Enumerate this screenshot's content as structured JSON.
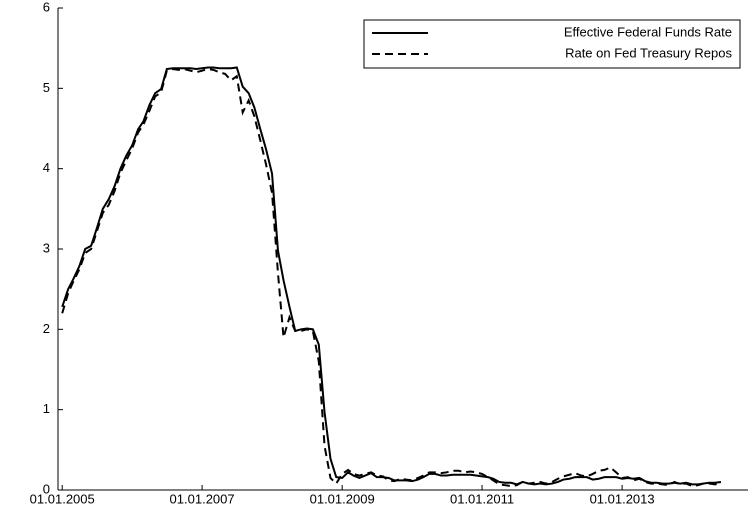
{
  "chart_data": {
    "type": "line",
    "x": [
      "2005-01-01",
      "2005-02-01",
      "2005-03-01",
      "2005-04-01",
      "2005-05-01",
      "2005-06-01",
      "2005-07-01",
      "2005-08-01",
      "2005-09-01",
      "2005-10-01",
      "2005-11-01",
      "2005-12-01",
      "2006-01-01",
      "2006-02-01",
      "2006-03-01",
      "2006-04-01",
      "2006-05-01",
      "2006-06-01",
      "2006-07-01",
      "2006-08-01",
      "2006-09-01",
      "2006-10-01",
      "2006-11-01",
      "2006-12-01",
      "2007-01-01",
      "2007-02-01",
      "2007-03-01",
      "2007-04-01",
      "2007-05-01",
      "2007-06-01",
      "2007-07-01",
      "2007-08-01",
      "2007-09-01",
      "2007-10-01",
      "2007-11-01",
      "2007-12-01",
      "2008-01-01",
      "2008-02-01",
      "2008-03-01",
      "2008-04-01",
      "2008-05-01",
      "2008-06-01",
      "2008-07-01",
      "2008-08-01",
      "2008-09-01",
      "2008-10-01",
      "2008-11-01",
      "2008-12-01",
      "2009-01-01",
      "2009-02-01",
      "2009-03-01",
      "2009-04-01",
      "2009-05-01",
      "2009-06-01",
      "2009-07-01",
      "2009-08-01",
      "2009-09-01",
      "2009-10-01",
      "2009-11-01",
      "2009-12-01",
      "2010-01-01",
      "2010-02-01",
      "2010-03-01",
      "2010-04-01",
      "2010-05-01",
      "2010-06-01",
      "2010-07-01",
      "2010-08-01",
      "2010-09-01",
      "2010-10-01",
      "2010-11-01",
      "2010-12-01",
      "2011-01-01",
      "2011-02-01",
      "2011-03-01",
      "2011-04-01",
      "2011-05-01",
      "2011-06-01",
      "2011-07-01",
      "2011-08-01",
      "2011-09-01",
      "2011-10-01",
      "2011-11-01",
      "2011-12-01",
      "2012-01-01",
      "2012-02-01",
      "2012-03-01",
      "2012-04-01",
      "2012-05-01",
      "2012-06-01",
      "2012-07-01",
      "2012-08-01",
      "2012-09-01",
      "2012-10-01",
      "2012-11-01",
      "2012-12-01",
      "2013-01-01",
      "2013-02-01",
      "2013-03-01",
      "2013-04-01",
      "2013-05-01",
      "2013-06-01",
      "2013-07-01",
      "2013-08-01",
      "2013-09-01",
      "2013-10-01",
      "2013-11-01",
      "2013-12-01",
      "2014-01-01",
      "2014-02-01",
      "2014-03-01",
      "2014-04-01",
      "2014-05-01",
      "2014-06-01"
    ],
    "series": [
      {
        "name": "Effective Federal Funds Rate",
        "color": "#000000",
        "dash": "solid",
        "values": [
          2.28,
          2.5,
          2.63,
          2.79,
          3.0,
          3.04,
          3.26,
          3.5,
          3.62,
          3.78,
          4.0,
          4.16,
          4.29,
          4.49,
          4.59,
          4.79,
          4.94,
          4.99,
          5.24,
          5.25,
          5.25,
          5.25,
          5.25,
          5.24,
          5.25,
          5.26,
          5.26,
          5.25,
          5.25,
          5.25,
          5.26,
          5.02,
          4.94,
          4.76,
          4.49,
          4.24,
          3.94,
          2.98,
          2.61,
          2.28,
          1.98,
          2.0,
          2.01,
          2.0,
          1.81,
          0.97,
          0.39,
          0.16,
          0.15,
          0.22,
          0.18,
          0.15,
          0.18,
          0.21,
          0.16,
          0.16,
          0.15,
          0.12,
          0.12,
          0.12,
          0.11,
          0.13,
          0.16,
          0.2,
          0.2,
          0.18,
          0.18,
          0.19,
          0.19,
          0.19,
          0.19,
          0.18,
          0.17,
          0.16,
          0.14,
          0.1,
          0.09,
          0.09,
          0.07,
          0.1,
          0.08,
          0.07,
          0.08,
          0.07,
          0.08,
          0.1,
          0.13,
          0.14,
          0.16,
          0.16,
          0.16,
          0.13,
          0.14,
          0.16,
          0.16,
          0.16,
          0.14,
          0.15,
          0.14,
          0.15,
          0.11,
          0.09,
          0.09,
          0.08,
          0.08,
          0.09,
          0.08,
          0.09,
          0.07,
          0.07,
          0.08,
          0.09,
          0.09,
          0.1
        ]
      },
      {
        "name": "Rate on Fed Treasury Repos",
        "color": "#000000",
        "dash": "dashed",
        "values": [
          2.2,
          2.45,
          2.6,
          2.75,
          2.95,
          3.0,
          3.22,
          3.45,
          3.55,
          3.72,
          3.95,
          4.1,
          4.25,
          4.45,
          4.55,
          4.72,
          4.9,
          4.95,
          5.22,
          5.24,
          5.23,
          5.24,
          5.22,
          5.2,
          5.22,
          5.24,
          5.23,
          5.2,
          5.18,
          5.1,
          5.15,
          4.7,
          4.85,
          4.65,
          4.35,
          4.05,
          3.7,
          2.7,
          1.9,
          2.15,
          1.98,
          1.98,
          2.0,
          1.98,
          1.6,
          0.55,
          0.15,
          0.08,
          0.2,
          0.25,
          0.2,
          0.18,
          0.2,
          0.22,
          0.18,
          0.17,
          0.12,
          0.11,
          0.14,
          0.13,
          0.12,
          0.15,
          0.18,
          0.22,
          0.22,
          0.21,
          0.22,
          0.24,
          0.24,
          0.22,
          0.23,
          0.22,
          0.2,
          0.16,
          0.12,
          0.07,
          0.06,
          0.05,
          0.06,
          0.1,
          0.08,
          0.09,
          0.1,
          0.08,
          0.1,
          0.14,
          0.17,
          0.19,
          0.21,
          0.18,
          0.17,
          0.2,
          0.24,
          0.25,
          0.28,
          0.22,
          0.15,
          0.16,
          0.12,
          0.14,
          0.1,
          0.08,
          0.08,
          0.07,
          0.06,
          0.1,
          0.07,
          0.08,
          0.05,
          0.06,
          0.08,
          0.08,
          0.07,
          0.08
        ]
      }
    ],
    "xlim": [
      "2004-12-10",
      "2014-10-20"
    ],
    "xticks": [
      {
        "value": "2005-01-01",
        "label": "01.01.2005"
      },
      {
        "value": "2007-01-01",
        "label": "01.01.2007"
      },
      {
        "value": "2009-01-01",
        "label": "01.01.2009"
      },
      {
        "value": "2011-01-01",
        "label": "01.01.2011"
      },
      {
        "value": "2013-01-01",
        "label": "01.01.2013"
      }
    ],
    "ylim": [
      0,
      6
    ],
    "yticks": [
      0,
      1,
      2,
      3,
      4,
      5,
      6
    ],
    "grid": false,
    "legend": "top-right"
  }
}
